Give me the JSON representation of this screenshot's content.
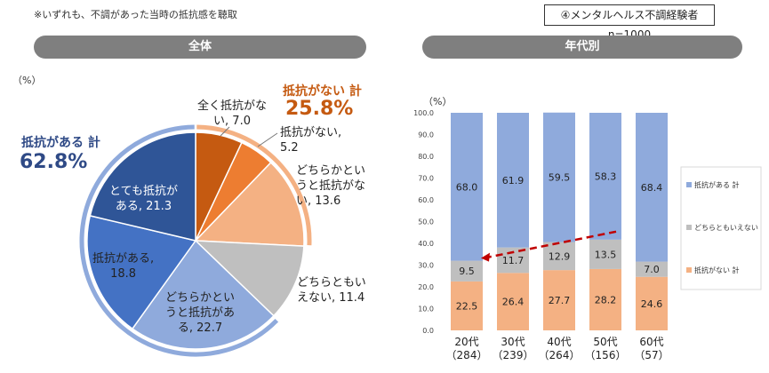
{
  "header": {
    "note": "※いずれも、不調があった当時の抵抗感を聴取",
    "sample": "④メンタルヘルス不調経験者 n=1000",
    "panel_total_title": "全体",
    "panel_age_title": "年代別",
    "percent_unit_left": "（%）",
    "percent_unit_right": "（%）"
  },
  "colors": {
    "none_at_all": "#c55a11",
    "none": "#ed7d31",
    "rather_none": "#f4b183",
    "neutral": "#bfbfbf",
    "rather_some": "#8faadc",
    "some": "#4472c4",
    "very": "#2f5597",
    "bar_some": "#8faadc",
    "bar_neutral": "#bfbfbf",
    "bar_none": "#f4b183",
    "arrow": "#c00000",
    "total_some_text": "#2f4a86",
    "total_none_text": "#c55a11"
  },
  "chart_data": [
    {
      "type": "pie",
      "slices": [
        {
          "label": [
            "全く抵抗がな",
            "い, 7.0"
          ],
          "value": 7.0,
          "color": "#c55a11"
        },
        {
          "label": [
            "抵抗がない,",
            "5.2"
          ],
          "value": 5.2,
          "color": "#ed7d31"
        },
        {
          "label": [
            "どちらかとい",
            "うと抵抗がな",
            "い, 13.6"
          ],
          "value": 13.6,
          "color": "#f4b183"
        },
        {
          "label": [
            "どちらともい",
            "えない, 11.4"
          ],
          "value": 11.4,
          "color": "#bfbfbf"
        },
        {
          "label": [
            "どちらかとい",
            "うと抵抗があ",
            "る, 22.7"
          ],
          "value": 22.7,
          "color": "#8faadc"
        },
        {
          "label": [
            "抵抗がある,",
            "18.8"
          ],
          "value": 18.8,
          "color": "#4472c4"
        },
        {
          "label": [
            "とても抵抗が",
            "ある, 21.3"
          ],
          "value": 21.3,
          "color": "#2f5597"
        }
      ],
      "group_totals": {
        "some": {
          "label": "抵抗がある 計",
          "value": "62.8%"
        },
        "none": {
          "label": "抵抗がない 計",
          "value": "25.8%"
        }
      }
    },
    {
      "type": "bar",
      "stacked": true,
      "categories": [
        "20代",
        "30代",
        "40代",
        "50代",
        "60代"
      ],
      "category_n": [
        "（284）",
        "（239）",
        "（264）",
        "（156）",
        "（57）"
      ],
      "series": [
        {
          "name": "抵抗がない 計",
          "values": [
            22.5,
            26.4,
            27.7,
            28.2,
            24.6
          ],
          "color": "#f4b183"
        },
        {
          "name": "どちらともいえない",
          "values": [
            9.5,
            11.7,
            12.9,
            13.5,
            7.0
          ],
          "color": "#bfbfbf"
        },
        {
          "name": "抵抗がある 計",
          "values": [
            68.0,
            61.9,
            59.5,
            58.3,
            68.4
          ],
          "color": "#8faadc"
        }
      ],
      "ylim": [
        0,
        100
      ],
      "yticks": [
        "0.0",
        "10.0",
        "20.0",
        "30.0",
        "40.0",
        "50.0",
        "60.0",
        "70.0",
        "80.0",
        "90.0",
        "100.0"
      ],
      "legend": [
        "抵抗がある 計",
        "どちらともいえない",
        "抵抗がない 計"
      ],
      "legend_position": "right"
    }
  ]
}
